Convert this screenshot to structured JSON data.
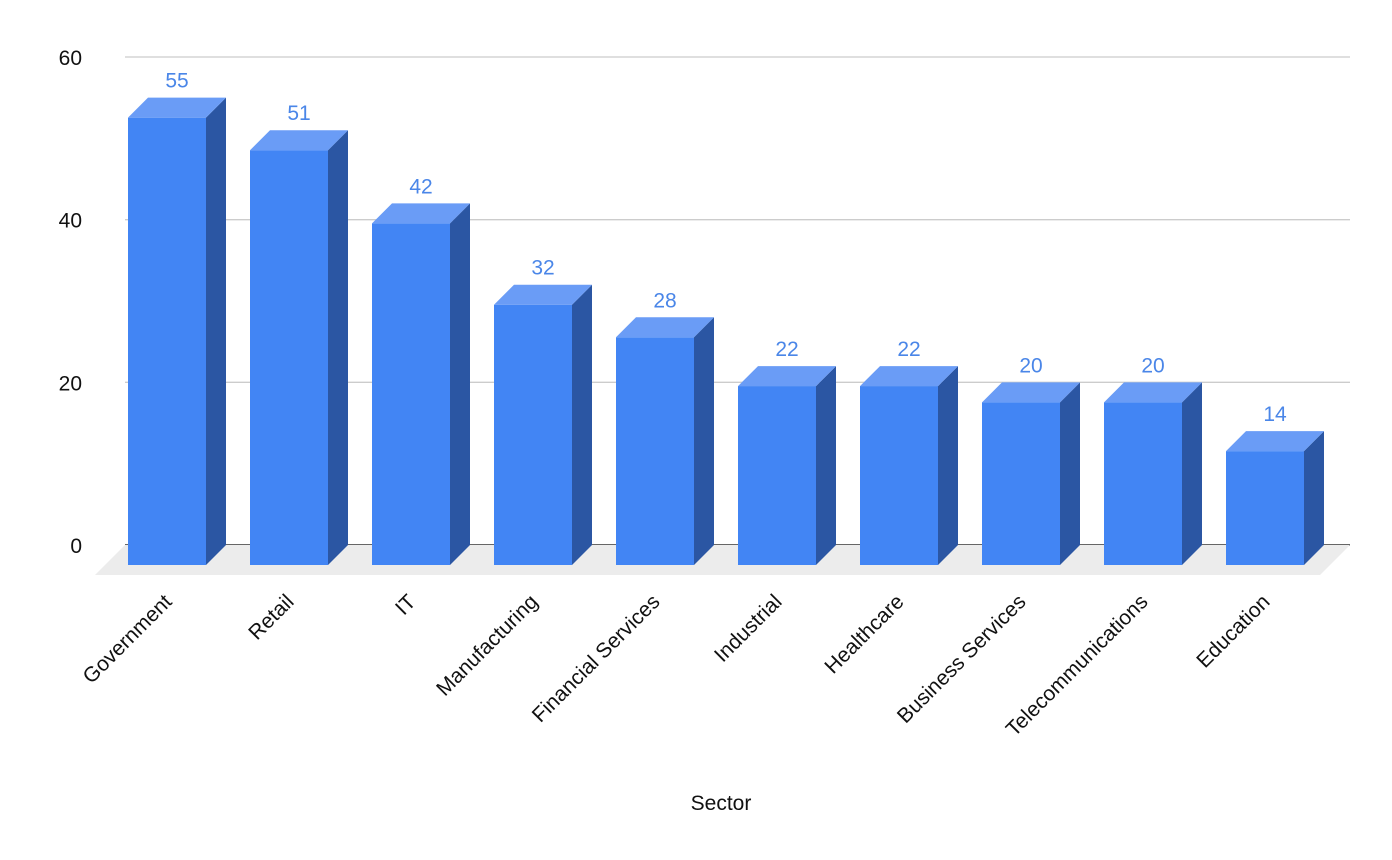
{
  "chart_data": {
    "type": "bar",
    "style": "3d",
    "categories": [
      "Government",
      "Retail",
      "IT",
      "Manufacturing",
      "Financial Services",
      "Industrial",
      "Healthcare",
      "Business Services",
      "Telecommunications",
      "Education"
    ],
    "values": [
      55,
      51,
      42,
      32,
      28,
      22,
      22,
      20,
      20,
      14
    ],
    "data_labels": [
      "55",
      "51",
      "42",
      "32",
      "28",
      "22",
      "22",
      "20",
      "20",
      "14"
    ],
    "title": "",
    "xlabel": "Sector",
    "ylabel": "",
    "ylim": [
      0,
      60
    ],
    "yticks": [
      0,
      20,
      40,
      60
    ],
    "grid": true,
    "legend": "none",
    "colors": {
      "bar_front": "#4285f4",
      "bar_top": "#6a9cf6",
      "bar_side": "#2b56a3",
      "label": "#4a86e8",
      "gridline": "#cccccc",
      "axis": "#333333",
      "floor": "#ececec"
    }
  }
}
